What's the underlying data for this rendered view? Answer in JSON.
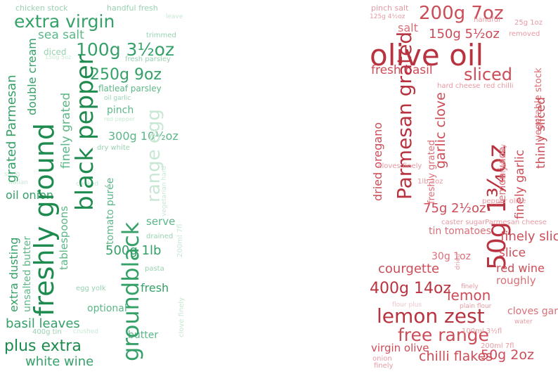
{
  "palettes": {
    "green": [
      "#1d8a4e",
      "#35a067",
      "#5cb786",
      "#98d2b1",
      "#c8e8d4"
    ],
    "red": [
      "#b8333f",
      "#cc4c57",
      "#da6f78",
      "#e79aa1",
      "#f2c6ca"
    ]
  },
  "left_cloud": [
    {
      "t": "chicken stock"
    },
    {
      "t": "handful fresh"
    },
    {
      "t": "leave"
    },
    {
      "t": "extra virgin"
    },
    {
      "t": "sea salt"
    },
    {
      "t": "trimmed"
    },
    {
      "t": "100g 3½oz"
    },
    {
      "t": "diced"
    },
    {
      "t": "150g 5oz"
    },
    {
      "t": "fresh parsley"
    },
    {
      "t": "250g 9oz"
    },
    {
      "t": "flatleaf parsley"
    },
    {
      "t": "oil garlic"
    },
    {
      "t": "pinch"
    },
    {
      "t": "red pepper"
    },
    {
      "t": "300g 10½oz"
    },
    {
      "t": "dry white"
    },
    {
      "t": "sprig"
    },
    {
      "t": "Italian"
    },
    {
      "t": "cooked"
    },
    {
      "t": "oil onion"
    },
    {
      "t": "serve"
    },
    {
      "t": "drained"
    },
    {
      "t": "500g 1lb"
    },
    {
      "t": "pasta"
    },
    {
      "t": "fresh"
    },
    {
      "t": "egg yolk"
    },
    {
      "t": "optional"
    },
    {
      "t": "basil leaves"
    },
    {
      "t": "400g tin"
    },
    {
      "t": "crushed"
    },
    {
      "t": "butter"
    },
    {
      "t": "plus extra"
    },
    {
      "t": "white wine"
    },
    {
      "t": "grated Parmesan"
    },
    {
      "t": "double cream"
    },
    {
      "t": "freshly ground"
    },
    {
      "t": "finely grated"
    },
    {
      "t": "black pepper"
    },
    {
      "t": "groundblack"
    },
    {
      "t": "range egg"
    },
    {
      "t": "tomato purée"
    },
    {
      "t": "extra dusting"
    },
    {
      "t": "unsalted butter"
    },
    {
      "t": "tablespoons"
    },
    {
      "t": "vegetarian hard"
    },
    {
      "t": "clove finely"
    },
    {
      "t": "200ml 7fl"
    }
  ],
  "right_cloud": [
    {
      "t": "pinch salt"
    },
    {
      "t": "125g 4½oz"
    },
    {
      "t": "200g 7oz"
    },
    {
      "t": "25g 1oz"
    },
    {
      "t": "salt"
    },
    {
      "t": "150g 5½oz"
    },
    {
      "t": "removed"
    },
    {
      "t": "olive oil"
    },
    {
      "t": "fresh basil"
    },
    {
      "t": "sliced"
    },
    {
      "t": "hard cheese"
    },
    {
      "t": "red chilli"
    },
    {
      "t": "Parmesan grated"
    },
    {
      "t": "dried oregano"
    },
    {
      "t": "garlic clove"
    },
    {
      "t": "freshly grated"
    },
    {
      "t": "50g 1¾oz"
    },
    {
      "t": "lemon juice"
    },
    {
      "t": "salt freshly"
    },
    {
      "t": "finely garlic"
    },
    {
      "t": "vegetable stock"
    },
    {
      "t": "thinly sliced"
    },
    {
      "t": "cloves finely"
    },
    {
      "t": "1lb 2oz"
    },
    {
      "t": "75g 2½oz"
    },
    {
      "t": "pepper olive"
    },
    {
      "t": "caster sugar"
    },
    {
      "t": "Parmesan cheese"
    },
    {
      "t": "tin tomatoes"
    },
    {
      "t": "finely sliced"
    },
    {
      "t": "30g 1oz"
    },
    {
      "t": "dried"
    },
    {
      "t": "slice"
    },
    {
      "t": "courgette"
    },
    {
      "t": "red wine"
    },
    {
      "t": "400g 14oz"
    },
    {
      "t": "finely"
    },
    {
      "t": "roughly"
    },
    {
      "t": "lemon"
    },
    {
      "t": "flour plus"
    },
    {
      "t": "plain flour"
    },
    {
      "t": "cloves garlic"
    },
    {
      "t": "lemon zest"
    },
    {
      "t": "water"
    },
    {
      "t": "free range"
    },
    {
      "t": "200ml 7fl"
    },
    {
      "t": "virgin olive"
    },
    {
      "t": "chilli flakes"
    },
    {
      "t": "50g 2oz"
    },
    {
      "t": "onion"
    },
    {
      "t": "finely"
    },
    {
      "t": "100ml 3½fl"
    },
    {
      "t": "handful"
    }
  ]
}
